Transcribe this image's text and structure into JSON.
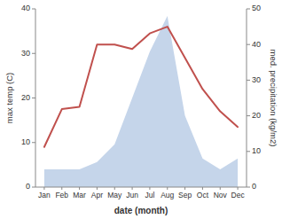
{
  "chart_data": {
    "type": "line",
    "categories": [
      "Jan",
      "Feb",
      "Mar",
      "Apr",
      "May",
      "Jun",
      "Jul",
      "Aug",
      "Sep",
      "Oct",
      "Nov",
      "Dec"
    ],
    "series": [
      {
        "type": "area",
        "axis": "y2",
        "color": "#c5d5ea",
        "values": [
          5,
          5,
          5,
          7,
          12,
          25,
          38,
          48,
          20,
          8,
          5,
          8
        ]
      },
      {
        "type": "line",
        "color": "#c0504d",
        "values": [
          9.0,
          17.5,
          18.0,
          32.0,
          32.0,
          31.0,
          34.5,
          36.0,
          29.0,
          22.0,
          17.0,
          13.5
        ]
      }
    ],
    "xlabel": "date (month)",
    "ylabel": "max temp (C)",
    "y2label": "med. precipitation (kg/m2)",
    "ylim": [
      0,
      40
    ],
    "yticks": [
      0,
      10,
      20,
      30,
      40
    ],
    "y2lim": [
      0,
      50
    ],
    "y2ticks": [
      0,
      10,
      20,
      30,
      40,
      50
    ],
    "grid": false
  }
}
